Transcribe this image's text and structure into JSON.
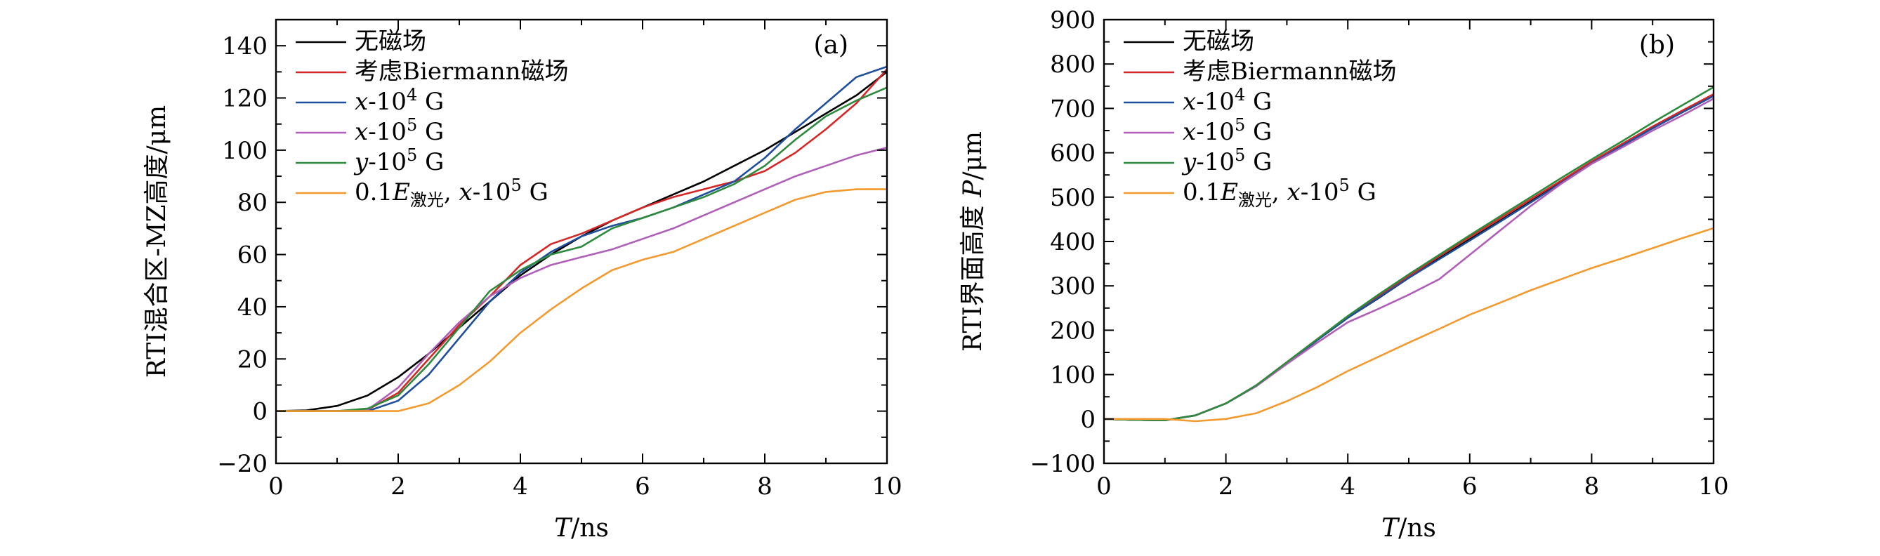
{
  "chart_data": [
    {
      "type": "line",
      "panel_label": "(a)",
      "xlabel": "T/ns",
      "ylabel": "RTI混合区-MZ高度/μm",
      "xlim": [
        0,
        10
      ],
      "ylim": [
        -20,
        150
      ],
      "xticks": [
        0,
        2,
        4,
        6,
        8,
        10
      ],
      "yticks": [
        -20,
        0,
        20,
        40,
        60,
        80,
        100,
        120,
        140
      ],
      "legend_position": "top-left",
      "series": [
        {
          "name": "无磁场",
          "color": "#000000",
          "x": [
            0,
            0.5,
            1,
            1.5,
            2,
            2.5,
            3,
            3.5,
            4,
            4.5,
            5,
            5.5,
            6,
            6.5,
            7,
            7.5,
            8,
            8.5,
            9,
            9.5,
            10
          ],
          "y": [
            0,
            0.3,
            2,
            6,
            13,
            22,
            32,
            42,
            52,
            60,
            67,
            73,
            78,
            83,
            88,
            94,
            100,
            107,
            114,
            121,
            130
          ]
        },
        {
          "name": "考虑Biermann磁场",
          "color": "#d62728",
          "x": [
            0,
            0.5,
            1,
            1.5,
            2,
            2.5,
            3,
            3.5,
            4,
            4.5,
            5,
            5.5,
            6,
            6.5,
            7,
            7.5,
            8,
            8.5,
            9,
            9.5,
            10
          ],
          "y": [
            0,
            0,
            0,
            0.5,
            7,
            20,
            33,
            44,
            56,
            64,
            68,
            73,
            78,
            82,
            85,
            88,
            92,
            99,
            108,
            118,
            131
          ]
        },
        {
          "name": "x-10^4 G",
          "color": "#1f4e9c",
          "x": [
            0,
            0.5,
            1,
            1.5,
            2,
            2.5,
            3,
            3.5,
            4,
            4.5,
            5,
            5.5,
            6,
            6.5,
            7,
            7.5,
            8,
            8.5,
            9,
            9.5,
            10
          ],
          "y": [
            0,
            0,
            0,
            0,
            4,
            14,
            28,
            42,
            53,
            61,
            67,
            71,
            74,
            78,
            83,
            88,
            97,
            108,
            118,
            128,
            132
          ]
        },
        {
          "name": "x-10^5 G",
          "color": "#b05fb8",
          "x": [
            0,
            0.5,
            1,
            1.5,
            2,
            2.5,
            3,
            3.5,
            4,
            4.5,
            5,
            5.5,
            6,
            6.5,
            7,
            7.5,
            8,
            8.5,
            9,
            9.5,
            10
          ],
          "y": [
            0,
            0,
            0,
            0.5,
            9,
            22,
            34,
            44,
            51,
            56,
            59,
            62,
            66,
            70,
            75,
            80,
            85,
            90,
            94,
            98,
            101
          ]
        },
        {
          "name": "y-10^5 G",
          "color": "#2e8b3e",
          "x": [
            0,
            0.5,
            1,
            1.5,
            2,
            2.5,
            3,
            3.5,
            4,
            4.5,
            5,
            5.5,
            6,
            6.5,
            7,
            7.5,
            8,
            8.5,
            9,
            9.5,
            10
          ],
          "y": [
            0,
            0,
            0,
            1,
            6,
            18,
            32,
            46,
            54,
            60,
            63,
            70,
            74,
            78,
            82,
            87,
            94,
            104,
            113,
            119,
            124
          ]
        },
        {
          "name": "0.1E激光, x-10^5 G",
          "color": "#f29a2e",
          "x": [
            0,
            0.5,
            1,
            1.5,
            2,
            2.5,
            3,
            3.5,
            4,
            4.5,
            5,
            5.5,
            6,
            6.5,
            7,
            7.5,
            8,
            8.5,
            9,
            9.5,
            10
          ],
          "y": [
            0,
            0,
            0,
            0,
            0,
            3,
            10,
            19,
            30,
            39,
            47,
            54,
            58,
            61,
            66,
            71,
            76,
            81,
            84,
            85,
            85
          ]
        }
      ]
    },
    {
      "type": "line",
      "panel_label": "(b)",
      "xlabel": "T/ns",
      "ylabel": "RTI界面高度 P/μm",
      "xlim": [
        0,
        10
      ],
      "ylim": [
        -100,
        900
      ],
      "xticks": [
        0,
        2,
        4,
        6,
        8,
        10
      ],
      "yticks": [
        -100,
        0,
        100,
        200,
        300,
        400,
        500,
        600,
        700,
        800,
        900
      ],
      "legend_position": "top-left",
      "series": [
        {
          "name": "无磁场",
          "color": "#000000",
          "x": [
            0,
            0.5,
            1,
            1.5,
            2,
            2.5,
            3,
            3.5,
            4,
            4.5,
            5,
            5.5,
            6,
            6.5,
            7,
            7.5,
            8,
            8.5,
            9,
            9.5,
            10
          ],
          "y": [
            0,
            -2,
            -3,
            8,
            35,
            75,
            125,
            178,
            228,
            272,
            318,
            362,
            405,
            447,
            490,
            533,
            578,
            618,
            657,
            694,
            730
          ]
        },
        {
          "name": "考虑Biermann磁场",
          "color": "#d62728",
          "x": [
            0,
            0.5,
            1,
            1.5,
            2,
            2.5,
            3,
            3.5,
            4,
            4.5,
            5,
            5.5,
            6,
            6.5,
            7,
            7.5,
            8,
            8.5,
            9,
            9.5,
            10
          ],
          "y": [
            0,
            -2,
            -3,
            8,
            35,
            76,
            128,
            180,
            230,
            276,
            322,
            367,
            410,
            452,
            495,
            537,
            580,
            620,
            659,
            696,
            732
          ]
        },
        {
          "name": "x-10^4 G",
          "color": "#1f4e9c",
          "x": [
            0,
            0.5,
            1,
            1.5,
            2,
            2.5,
            3,
            3.5,
            4,
            4.5,
            5,
            5.5,
            6,
            6.5,
            7,
            7.5,
            8,
            8.5,
            9,
            9.5,
            10
          ],
          "y": [
            0,
            -2,
            -3,
            8,
            35,
            74,
            126,
            178,
            228,
            273,
            318,
            360,
            402,
            445,
            488,
            532,
            576,
            616,
            655,
            692,
            728
          ]
        },
        {
          "name": "x-10^5 G",
          "color": "#b05fb8",
          "x": [
            0,
            0.5,
            1,
            1.5,
            2,
            2.5,
            3,
            3.5,
            4,
            4.5,
            5,
            5.5,
            6,
            6.5,
            7,
            7.5,
            8,
            8.5,
            9,
            9.5,
            10
          ],
          "y": [
            0,
            -2,
            -3,
            8,
            35,
            74,
            124,
            172,
            218,
            248,
            280,
            315,
            370,
            425,
            480,
            530,
            575,
            612,
            650,
            685,
            722
          ]
        },
        {
          "name": "y-10^5 G",
          "color": "#2e8b3e",
          "x": [
            0,
            0.5,
            1,
            1.5,
            2,
            2.5,
            3,
            3.5,
            4,
            4.5,
            5,
            5.5,
            6,
            6.5,
            7,
            7.5,
            8,
            8.5,
            9,
            9.5,
            10
          ],
          "y": [
            0,
            -2,
            -3,
            8,
            35,
            76,
            128,
            180,
            232,
            280,
            326,
            370,
            414,
            457,
            500,
            543,
            585,
            626,
            668,
            708,
            748
          ]
        },
        {
          "name": "0.1E激光, x-10^5 G",
          "color": "#f29a2e",
          "x": [
            0,
            0.5,
            1,
            1.5,
            2,
            2.5,
            3,
            3.5,
            4,
            4.5,
            5,
            5.5,
            6,
            6.5,
            7,
            7.5,
            8,
            8.5,
            9,
            9.5,
            10
          ],
          "y": [
            0,
            0,
            0,
            -5,
            0,
            13,
            40,
            72,
            108,
            140,
            172,
            203,
            235,
            262,
            290,
            315,
            340,
            362,
            385,
            408,
            430
          ]
        }
      ]
    }
  ]
}
